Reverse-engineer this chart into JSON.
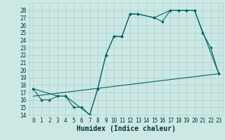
{
  "xlabel": "Humidex (Indice chaleur)",
  "bg_color": "#cce8e4",
  "grid_color": "#aacfcc",
  "line_color": "#006666",
  "xlim": [
    -0.5,
    23.5
  ],
  "ylim": [
    14,
    29
  ],
  "xticks": [
    0,
    1,
    2,
    3,
    4,
    5,
    6,
    7,
    8,
    9,
    10,
    11,
    12,
    13,
    14,
    15,
    16,
    17,
    18,
    19,
    20,
    21,
    22,
    23
  ],
  "yticks": [
    14,
    15,
    16,
    17,
    18,
    19,
    20,
    21,
    22,
    23,
    24,
    25,
    26,
    27,
    28
  ],
  "series1_x": [
    0,
    1,
    2,
    3,
    4,
    5,
    6,
    7,
    8,
    9,
    10,
    11,
    12,
    13,
    15,
    16,
    17,
    18,
    19,
    20,
    21,
    22,
    23
  ],
  "series1_y": [
    17.5,
    16.0,
    16.0,
    16.5,
    16.5,
    15.0,
    15.0,
    14.0,
    17.5,
    22.0,
    24.5,
    24.5,
    27.5,
    27.5,
    27.0,
    26.5,
    28.0,
    28.0,
    28.0,
    28.0,
    25.0,
    23.0,
    19.5
  ],
  "series2_x": [
    0,
    3,
    4,
    7,
    8,
    9,
    10,
    11,
    12,
    13,
    15,
    17,
    18,
    19,
    20,
    23
  ],
  "series2_y": [
    17.5,
    16.5,
    16.5,
    14.0,
    17.5,
    22.0,
    24.5,
    24.5,
    27.5,
    27.5,
    27.0,
    28.0,
    28.0,
    28.0,
    28.0,
    19.5
  ],
  "series3_x": [
    0,
    23
  ],
  "series3_y": [
    16.5,
    19.5
  ],
  "xlabel_fontsize": 7,
  "tick_fontsize": 5.5
}
